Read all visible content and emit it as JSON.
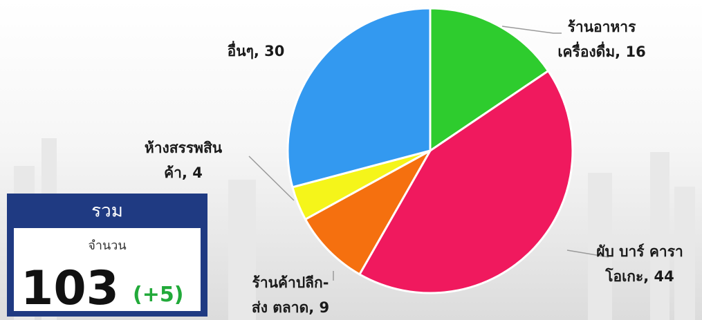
{
  "chart_data": {
    "type": "pie",
    "labels": [
      [
        "ร้านอาหาร",
        "เครื่องดื่ม, 16"
      ],
      [
        "ผับ บาร์ คารา",
        "โอเกะ, 44"
      ],
      [
        "ร้านค้าปลีก-",
        "ส่ง ตลาด, 9"
      ],
      [
        "ห้างสรรพสิน",
        "ค้า, 4"
      ],
      [
        "อื่นๆ, 30"
      ]
    ],
    "values": [
      16,
      44,
      9,
      4,
      30
    ],
    "colors": [
      "#2ecc2e",
      "#f0195e",
      "#f5700f",
      "#f5f51a",
      "#3399f0"
    ]
  },
  "summary": {
    "title": "รวม",
    "subtitle": "จำนวน",
    "total": 103,
    "change": {
      "value": 5,
      "label": "(+5)"
    }
  }
}
